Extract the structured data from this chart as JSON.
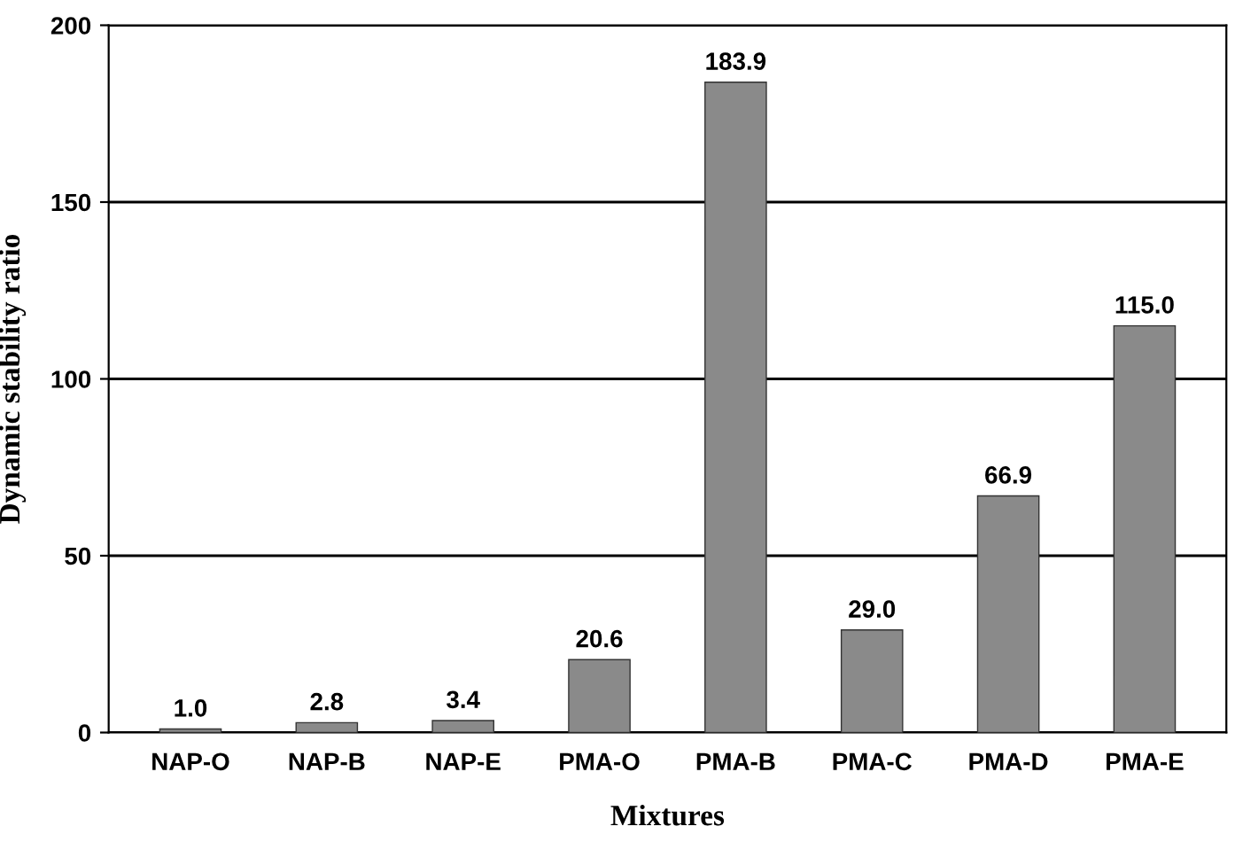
{
  "chart_data": {
    "type": "bar",
    "xlabel": "Mixtures",
    "ylabel": "Dynamic stability ratio",
    "categories": [
      "NAP-O",
      "NAP-B",
      "NAP-E",
      "PMA-O",
      "PMA-B",
      "PMA-C",
      "PMA-D",
      "PMA-E"
    ],
    "values": [
      1.0,
      2.8,
      3.4,
      20.6,
      183.9,
      29.0,
      66.9,
      115.0
    ],
    "value_labels": [
      "1.0",
      "2.8",
      "3.4",
      "20.6",
      "183.9",
      "29.0",
      "66.9",
      "115.0"
    ],
    "color": "#8a8a8a",
    "ylim": [
      0,
      200
    ],
    "yticks": [
      0,
      50,
      100,
      150,
      200
    ],
    "grid": "y",
    "legend": false
  }
}
